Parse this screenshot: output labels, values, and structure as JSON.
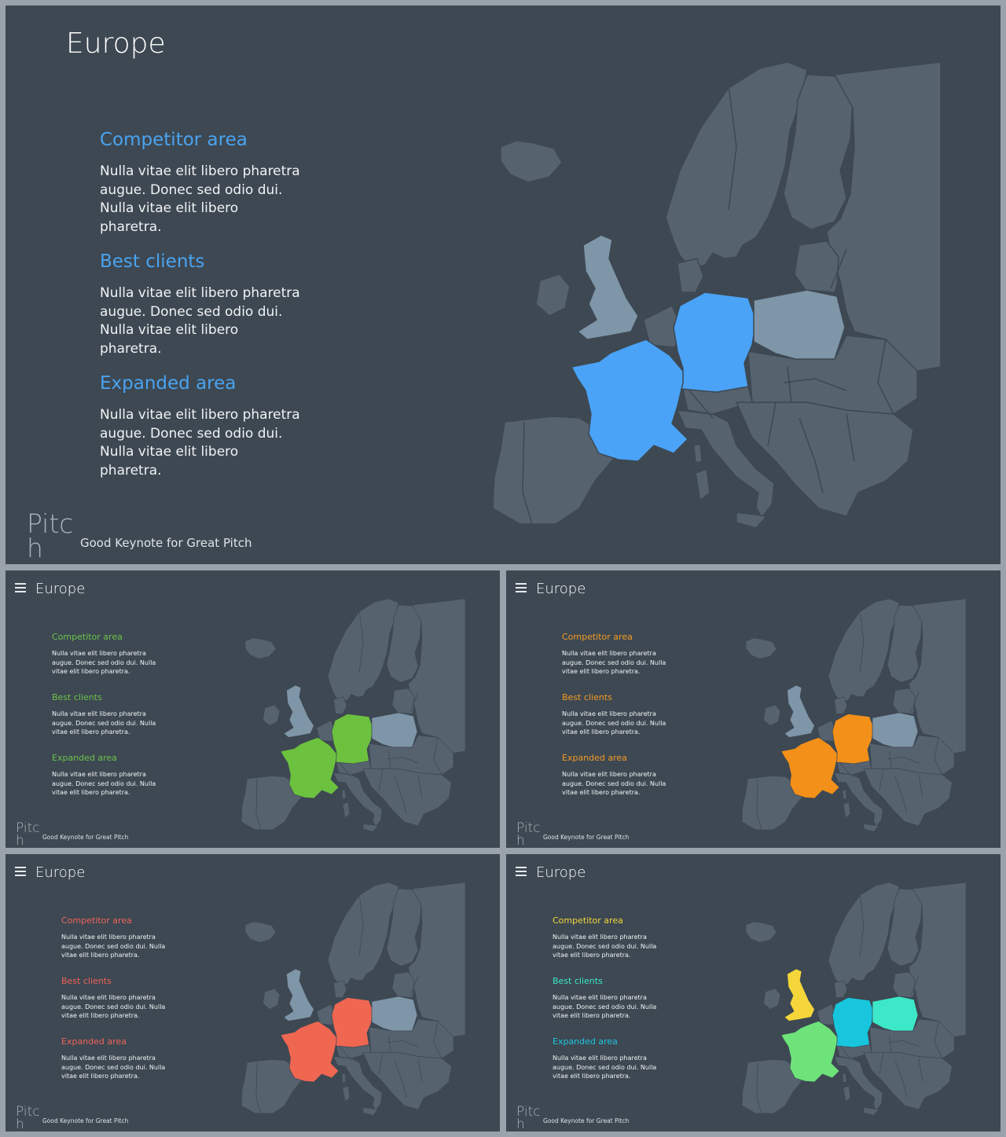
{
  "slides": [
    {
      "id": "main",
      "title": "Europe",
      "sections": [
        {
          "heading": "Competitor area",
          "body": "Nulla vitae elit libero pharetra augue. Donec sed odio dui. Nulla vitae elit libero pharetra."
        },
        {
          "heading": "Best clients",
          "body": "Nulla vitae elit libero pharetra augue. Donec sed odio dui. Nulla vitae elit libero pharetra."
        },
        {
          "heading": "Expanded area",
          "body": "Nulla vitae elit libero pharetra augue. Donec sed odio dui. Nulla vitae elit libero pharetra."
        }
      ],
      "heading_colors": [
        "#4aa3f0",
        "#4aa3f0",
        "#4aa3f0"
      ],
      "highlight": {
        "france": "#4aa3f7",
        "germany": "#4aa3f7",
        "poland": "#7f95a8",
        "uk": "#7f95a8"
      },
      "logo": "Pitch",
      "tagline": "Good Keynote for Great Pitch"
    },
    {
      "id": "green",
      "title": "Europe",
      "sections": [
        {
          "heading": "Competitor area",
          "body": "Nulla vitae elit libero pharetra augue. Donec sed odio dui. Nulla vitae elit libero pharetra."
        },
        {
          "heading": "Best clients",
          "body": "Nulla vitae elit libero pharetra augue. Donec sed odio dui. Nulla vitae elit libero pharetra."
        },
        {
          "heading": "Expanded area",
          "body": "Nulla vitae elit libero pharetra augue. Donec sed odio dui. Nulla vitae elit libero pharetra."
        }
      ],
      "heading_colors": [
        "#6cc24a",
        "#6cc24a",
        "#6cc24a"
      ],
      "highlight": {
        "france": "#6cc23e",
        "germany": "#6cc23e",
        "poland": "#7f95a8",
        "uk": "#7f95a8"
      },
      "logo": "Pitch",
      "tagline": "Good Keynote for Great Pitch"
    },
    {
      "id": "orange",
      "title": "Europe",
      "sections": [
        {
          "heading": "Competitor area",
          "body": "Nulla vitae elit libero pharetra augue. Donec sed odio dui. Nulla vitae elit libero pharetra."
        },
        {
          "heading": "Best clients",
          "body": "Nulla vitae elit libero pharetra augue. Donec sed odio dui. Nulla vitae elit libero pharetra."
        },
        {
          "heading": "Expanded area",
          "body": "Nulla vitae elit libero pharetra augue. Donec sed odio dui. Nulla vitae elit libero pharetra."
        }
      ],
      "heading_colors": [
        "#f39a24",
        "#f39a24",
        "#f39a24"
      ],
      "highlight": {
        "france": "#f39019",
        "germany": "#f39019",
        "poland": "#7f95a8",
        "uk": "#7f95a8"
      },
      "logo": "Pitch",
      "tagline": "Good Keynote for Great Pitch"
    },
    {
      "id": "red",
      "title": "Europe",
      "sections": [
        {
          "heading": "Competitor area",
          "body": "Nulla vitae elit libero pharetra augue. Donec sed odio dui. Nulla vitae elit libero pharetra."
        },
        {
          "heading": "Best clients",
          "body": "Nulla vitae elit libero pharetra augue. Donec sed odio dui. Nulla vitae elit libero pharetra."
        },
        {
          "heading": "Expanded area",
          "body": "Nulla vitae elit libero pharetra augue. Donec sed odio dui. Nulla vitae elit libero pharetra."
        }
      ],
      "heading_colors": [
        "#f0625a",
        "#f0625a",
        "#f0625a"
      ],
      "highlight": {
        "france": "#ef6651",
        "germany": "#ef6651",
        "poland": "#7f95a8",
        "uk": "#7f95a8"
      },
      "logo": "Pitch",
      "tagline": "Good Keynote for Great Pitch"
    },
    {
      "id": "multicolor",
      "title": "Europe",
      "sections": [
        {
          "heading": "Competitor area",
          "body": "Nulla vitae elit libero pharetra augue. Donec sed odio dui. Nulla vitae elit libero pharetra."
        },
        {
          "heading": "Best clients",
          "body": "Nulla vitae elit libero pharetra augue. Donec sed odio dui. Nulla vitae elit libero pharetra."
        },
        {
          "heading": "Expanded area",
          "body": "Nulla vitae elit libero pharetra augue. Donec sed odio dui. Nulla vitae elit libero pharetra."
        }
      ],
      "heading_colors": [
        "#f5d63a",
        "#3de8c8",
        "#1ec6e0"
      ],
      "highlight": {
        "france": "#6ee37a",
        "germany": "#17c6dd",
        "poland": "#3de8c8",
        "uk": "#f5d63a"
      },
      "logo": "Pitch",
      "tagline": "Good Keynote for Great Pitch"
    }
  ]
}
